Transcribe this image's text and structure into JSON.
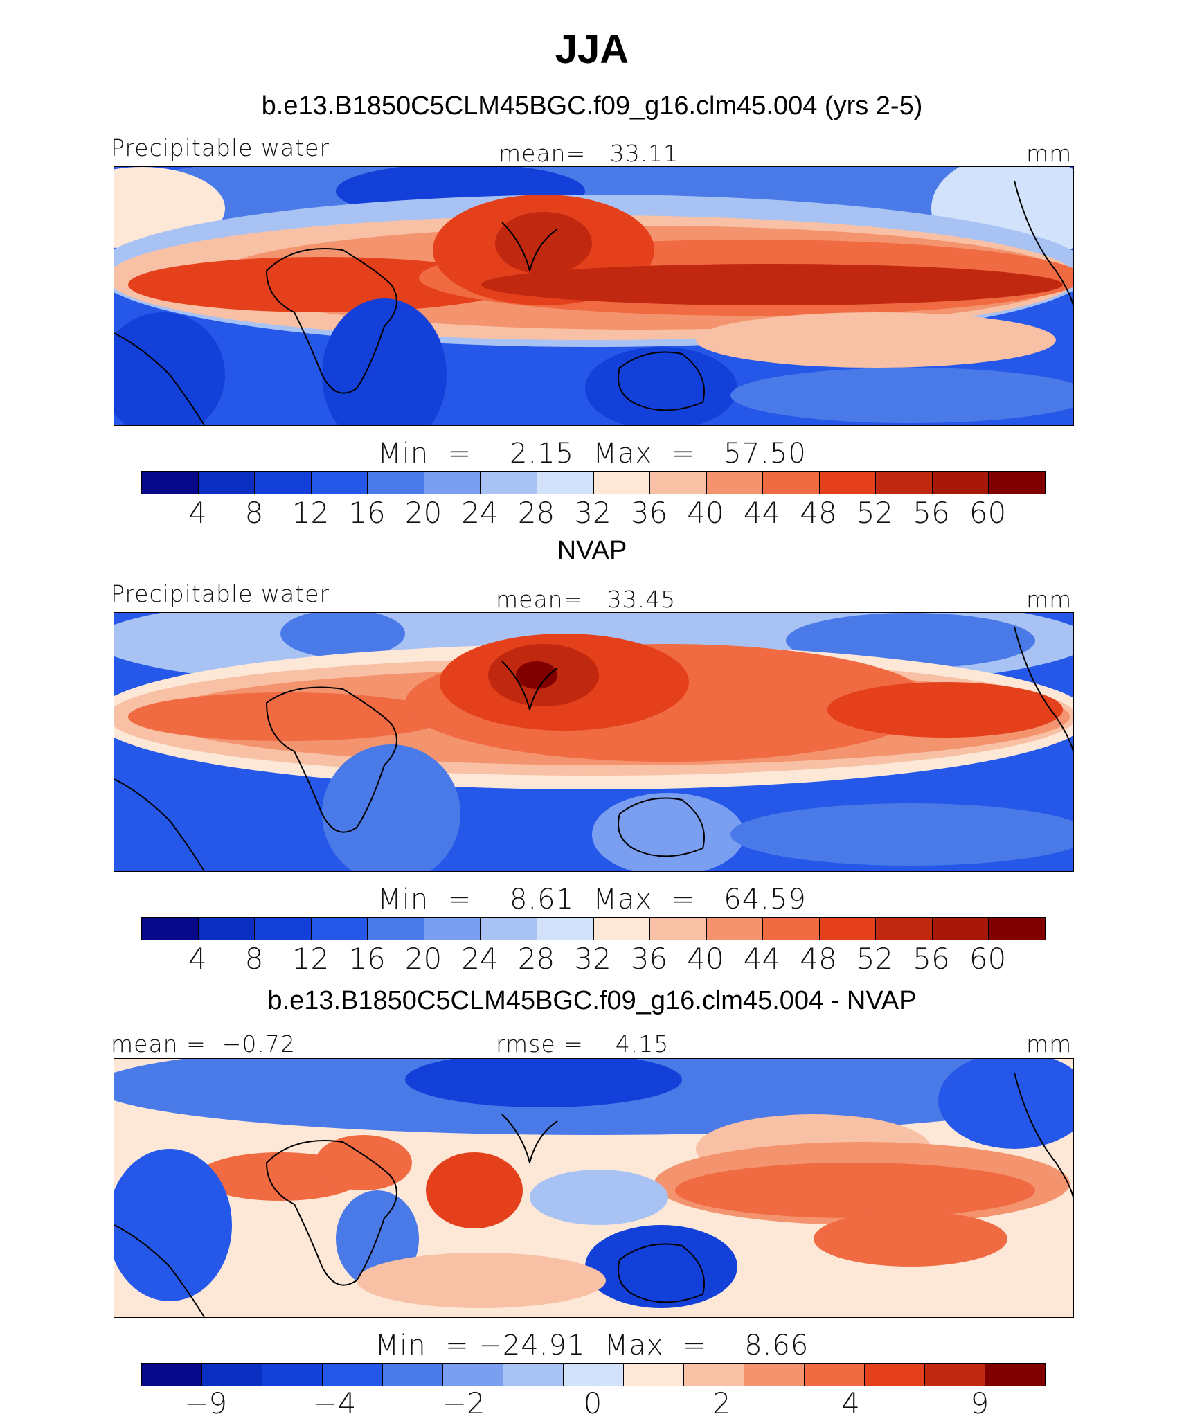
{
  "figure": {
    "title": "JJA"
  },
  "panels": [
    {
      "title": "b.e13.B1850C5CLM45BGC.f09_g16.clm45.004 (yrs 2-5)",
      "left_label": "Precipitable water",
      "center_label": "mean=   33.11",
      "right_label": "mm",
      "minmax": "Min  =    2.15  Max  =   57.50",
      "tick_labels": [
        "4",
        "8",
        "12",
        "16",
        "20",
        "24",
        "28",
        "32",
        "36",
        "40",
        "44",
        "48",
        "52",
        "56",
        "60"
      ]
    },
    {
      "title": "NVAP",
      "left_label": "Precipitable water",
      "center_label": "mean=   33.45",
      "right_label": "mm",
      "minmax": "Min  =    8.61  Max  =   64.59",
      "tick_labels": [
        "4",
        "8",
        "12",
        "16",
        "20",
        "24",
        "28",
        "32",
        "36",
        "40",
        "44",
        "48",
        "52",
        "56",
        "60"
      ]
    },
    {
      "title": "b.e13.B1850C5CLM45BGC.f09_g16.clm45.004 - NVAP",
      "left_label": "mean =  −0.72",
      "center_label": "rmse =    4.15",
      "right_label": "mm",
      "minmax": "Min  = −24.91  Max  =    8.66",
      "tick_labels": [
        "−9",
        "",
        "−4",
        "",
        "−2",
        "",
        "0",
        "",
        "2",
        "",
        "4",
        "",
        "9"
      ]
    }
  ],
  "colors": {
    "abs_scale": [
      "#08088a",
      "#0b2fc0",
      "#1240d8",
      "#2558e8",
      "#4a7ae8",
      "#7a9ef0",
      "#a8c2f4",
      "#d2e2fa",
      "#fde8d8",
      "#f8c0a4",
      "#f4946e",
      "#f06a42",
      "#e4401c",
      "#c02810",
      "#a81808",
      "#800000"
    ],
    "diff_scale": [
      "#08088a",
      "#0b2fc0",
      "#1240d8",
      "#2558e8",
      "#4a7ae8",
      "#7a9ef0",
      "#a8c2f4",
      "#d2e2fa",
      "#fde8d8",
      "#f8c0a4",
      "#f4946e",
      "#f06a42",
      "#e4401c",
      "#c02810",
      "#800000"
    ]
  },
  "chart_data": [
    {
      "type": "heatmap",
      "title": "b.e13.B1850C5CLM45BGC.f09_g16.clm45.004 (yrs 2-5)",
      "field": "Precipitable water",
      "units": "mm",
      "mean": 33.11,
      "min": 2.15,
      "max": 57.5,
      "levels": [
        4,
        8,
        12,
        16,
        20,
        24,
        28,
        32,
        36,
        40,
        44,
        48,
        52,
        56,
        60
      ]
    },
    {
      "type": "heatmap",
      "title": "NVAP",
      "field": "Precipitable water",
      "units": "mm",
      "mean": 33.45,
      "min": 8.61,
      "max": 64.59,
      "levels": [
        4,
        8,
        12,
        16,
        20,
        24,
        28,
        32,
        36,
        40,
        44,
        48,
        52,
        56,
        60
      ]
    },
    {
      "type": "heatmap",
      "title": "b.e13.B1850C5CLM45BGC.f09_g16.clm45.004 - NVAP",
      "units": "mm",
      "mean": -0.72,
      "rmse": 4.15,
      "min": -24.91,
      "max": 8.66,
      "levels": [
        -9,
        -4,
        -2,
        0,
        2,
        4,
        9
      ]
    }
  ]
}
